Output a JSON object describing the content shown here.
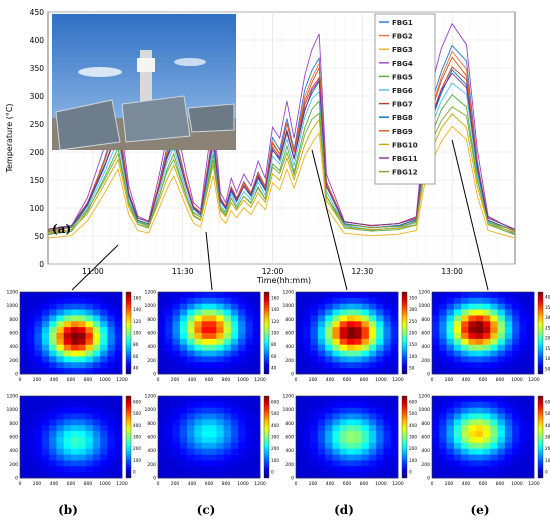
{
  "chart_data": [
    {
      "type": "line",
      "panel_label": "(a)",
      "xlabel": "Time(hh:mm)",
      "ylabel": "Temperature (°C)",
      "xlim": [
        10.75,
        13.35
      ],
      "ylim": [
        0,
        450
      ],
      "x_ticks": [
        {
          "v": 11.0,
          "label": "11:00"
        },
        {
          "v": 11.5,
          "label": "11:30"
        },
        {
          "v": 12.0,
          "label": "12:00"
        },
        {
          "v": 12.5,
          "label": "12:30"
        },
        {
          "v": 13.0,
          "label": "13:00"
        }
      ],
      "y_ticks": [
        0,
        50,
        100,
        150,
        200,
        250,
        300,
        350,
        400,
        450
      ],
      "grid": true,
      "legend_position": "top-right",
      "profile_x": [
        10.75,
        10.88,
        10.97,
        11.06,
        11.14,
        11.2,
        11.25,
        11.31,
        11.37,
        11.41,
        11.45,
        11.52,
        11.56,
        11.6,
        11.67,
        11.71,
        11.74,
        11.77,
        11.8,
        11.84,
        11.88,
        11.92,
        11.96,
        12.0,
        12.04,
        12.08,
        12.12,
        12.18,
        12.22,
        12.26,
        12.3,
        12.4,
        12.55,
        12.7,
        12.8,
        12.86,
        12.94,
        13.0,
        13.08,
        13.14,
        13.2,
        13.35
      ],
      "profile_shape": [
        0.06,
        0.08,
        0.2,
        0.4,
        0.6,
        0.25,
        0.12,
        0.1,
        0.3,
        0.45,
        0.55,
        0.3,
        0.18,
        0.15,
        0.55,
        0.22,
        0.18,
        0.28,
        0.22,
        0.3,
        0.25,
        0.35,
        0.28,
        0.5,
        0.45,
        0.6,
        0.45,
        0.72,
        0.82,
        0.88,
        0.3,
        0.1,
        0.08,
        0.09,
        0.12,
        0.6,
        0.82,
        0.93,
        0.85,
        0.4,
        0.12,
        0.06
      ],
      "series": [
        {
          "name": "FBG1",
          "color": "#1f77d4",
          "peak": 390
        },
        {
          "name": "FBG2",
          "color": "#e8743b",
          "peak": 375
        },
        {
          "name": "FBG3",
          "color": "#edb120",
          "peak": 240
        },
        {
          "name": "FBG4",
          "color": "#9b40c4",
          "peak": 425
        },
        {
          "name": "FBG5",
          "color": "#4fa93a",
          "peak": 300
        },
        {
          "name": "FBG6",
          "color": "#4dbeee",
          "peak": 320
        },
        {
          "name": "FBG7",
          "color": "#c0392b",
          "peak": 345
        },
        {
          "name": "FBG8",
          "color": "#0072bd",
          "peak": 335
        },
        {
          "name": "FBG9",
          "color": "#d95319",
          "peak": 355
        },
        {
          "name": "FBG10",
          "color": "#c8a800",
          "peak": 255
        },
        {
          "name": "FBG11",
          "color": "#7e2f8e",
          "peak": 330
        },
        {
          "name": "FBG12",
          "color": "#77ac30",
          "peak": 270
        }
      ],
      "arrows_to_panels": [
        "(b)",
        "(c)",
        "(d)",
        "(e)"
      ]
    },
    {
      "type": "heatmap",
      "panels": [
        {
          "label": "(b)",
          "colorbar_top": [
            40,
            60,
            80,
            100,
            120,
            140,
            160
          ],
          "colorbar_bottom": [
            0,
            100,
            200,
            300,
            400,
            500,
            600
          ]
        },
        {
          "label": "(c)",
          "colorbar_top": [
            40,
            60,
            80,
            100,
            120,
            140,
            160
          ],
          "colorbar_bottom": [
            0,
            100,
            200,
            300,
            400,
            500,
            600
          ]
        },
        {
          "label": "(d)",
          "colorbar_top": [
            50,
            100,
            150,
            200,
            250,
            300,
            350
          ],
          "colorbar_bottom": [
            0,
            100,
            200,
            300,
            400,
            500,
            600
          ]
        },
        {
          "label": "(e)",
          "colorbar_top": [
            50,
            100,
            150,
            200,
            250,
            300,
            350,
            400
          ],
          "colorbar_bottom": [
            0,
            100,
            200,
            300,
            400,
            500,
            600
          ]
        }
      ],
      "x_ticks": [
        0,
        200,
        400,
        600,
        800,
        1000,
        1200
      ],
      "y_ticks": [
        0,
        200,
        400,
        600,
        800,
        1000,
        1200
      ]
    }
  ]
}
